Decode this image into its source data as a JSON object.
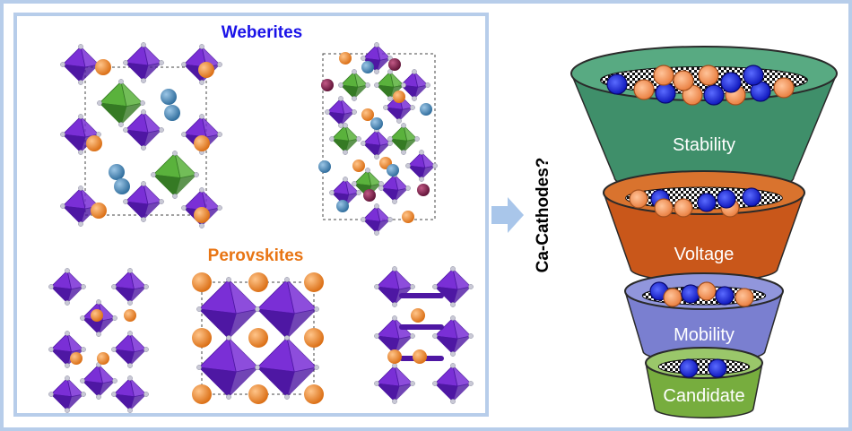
{
  "colors": {
    "frame": "#b7cdea",
    "panel_border": "#b7cdea",
    "weberites_title": "#1a12e8",
    "perovskites_title": "#e87514",
    "octahedron": "#7a2fd6",
    "octahedron_dark": "#4e17a3",
    "green_octahedron": "#5ab23c",
    "orange_atom": "#e8801f",
    "blue_atom": "#3f7fb0",
    "maroon_atom": "#7a1f4a",
    "arrow": "#a9c6ea",
    "funnel_stability": "#3f8f6a",
    "funnel_voltage": "#c9571a",
    "funnel_mobility": "#7a7fd0",
    "funnel_candidate": "#77ad3e",
    "ion_blue": "#1a1ad6",
    "ion_orange": "#f08a4b"
  },
  "left_panel": {
    "weberites_title": "Weberites",
    "perovskites_title": "Perovskites"
  },
  "side_label": "Ca-Cathodes?",
  "funnel": {
    "stages": [
      {
        "label": "Stability"
      },
      {
        "label": "Voltage"
      },
      {
        "label": "Mobility"
      },
      {
        "label": "Candidate"
      }
    ]
  }
}
